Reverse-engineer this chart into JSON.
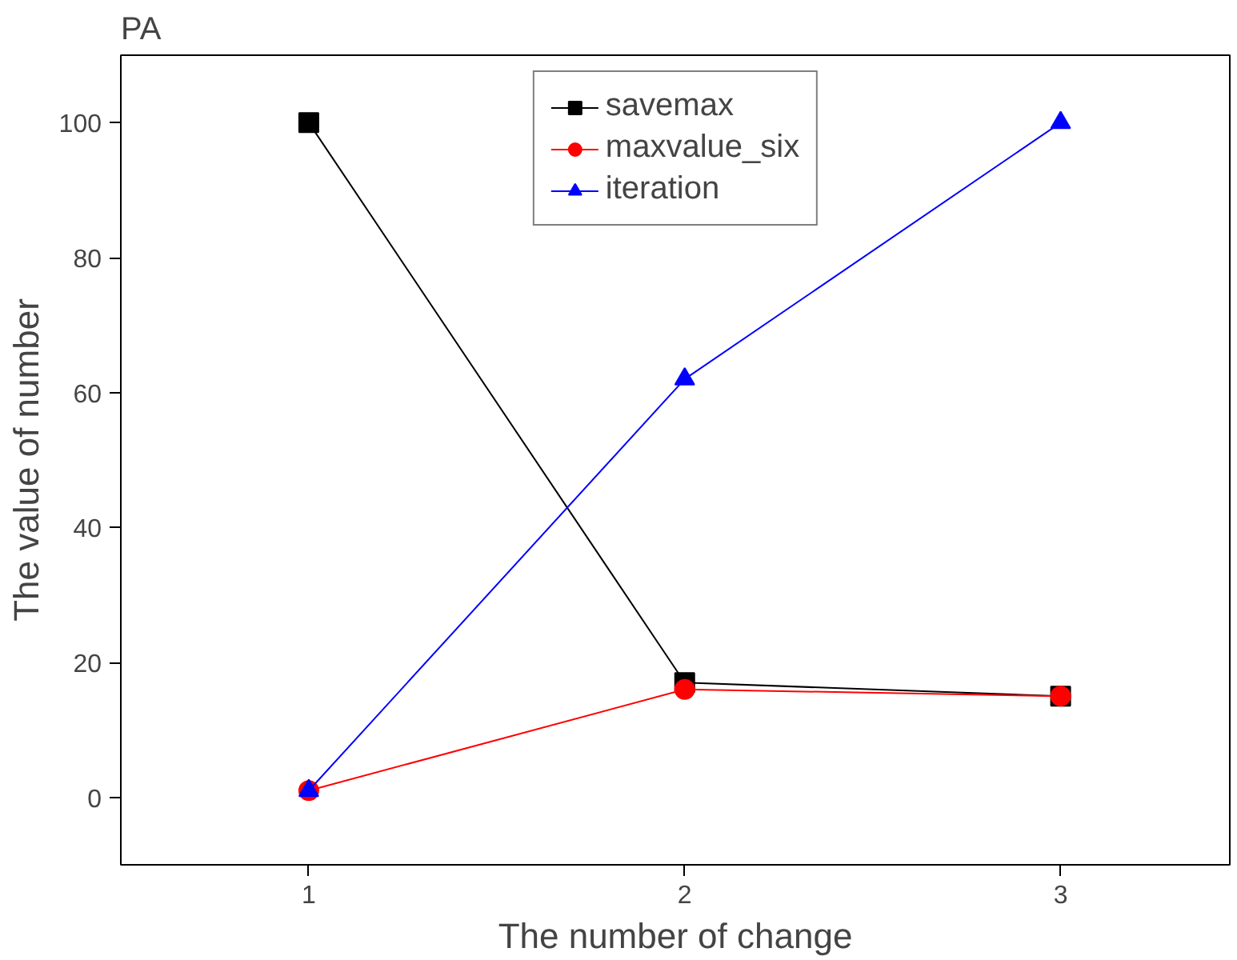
{
  "chart_data": {
    "type": "line",
    "title": "PA",
    "xlabel": "The number of change",
    "ylabel": "The value of number",
    "x": [
      1,
      2,
      3
    ],
    "series": [
      {
        "name": "savemax",
        "color": "#000000",
        "marker": "square",
        "values": [
          100,
          17,
          15
        ]
      },
      {
        "name": "maxvalue_six",
        "color": "#ff0000",
        "marker": "circle",
        "values": [
          1,
          16,
          15
        ]
      },
      {
        "name": "iteration",
        "color": "#0000ff",
        "marker": "triangle",
        "values": [
          1,
          62,
          100
        ]
      }
    ],
    "xlim": [
      0.5,
      3.45
    ],
    "xticks": [
      1,
      2,
      3
    ],
    "ylim": [
      -10,
      110
    ],
    "yticks": [
      0,
      20,
      40,
      60,
      80,
      100
    ],
    "grid": false,
    "legend": "top",
    "line_style": "solid"
  }
}
